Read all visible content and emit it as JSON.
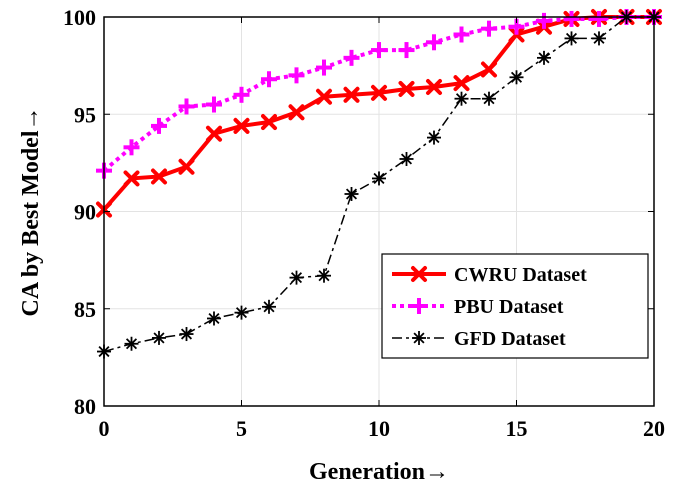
{
  "chart_data": {
    "type": "line",
    "xlabel": "Generation→",
    "ylabel": "CA by Best Model→",
    "xlim": [
      0,
      20
    ],
    "ylim": [
      80,
      100
    ],
    "xticks": [
      0,
      5,
      10,
      15,
      20
    ],
    "yticks": [
      80,
      85,
      90,
      95,
      100
    ],
    "grid": true,
    "legend_position": "bottom-right",
    "x": [
      0,
      1,
      2,
      3,
      4,
      5,
      6,
      7,
      8,
      9,
      10,
      11,
      12,
      13,
      14,
      15,
      16,
      17,
      18,
      19,
      20
    ],
    "series": [
      {
        "name": "CWRU Dataset",
        "color": "#ff0000",
        "line_style": "solid",
        "marker": "x",
        "values": [
          90.1,
          91.7,
          91.8,
          92.3,
          94.0,
          94.4,
          94.6,
          95.1,
          95.9,
          96.0,
          96.1,
          96.3,
          96.4,
          96.6,
          97.3,
          99.1,
          99.5,
          99.9,
          100.0,
          100.0,
          100.0
        ]
      },
      {
        "name": "PBU Dataset",
        "color": "#ff00ff",
        "line_style": "dotted",
        "marker": "+",
        "values": [
          92.1,
          93.3,
          94.4,
          95.4,
          95.5,
          96.0,
          96.8,
          97.0,
          97.4,
          97.9,
          98.3,
          98.3,
          98.7,
          99.1,
          99.4,
          99.5,
          99.8,
          99.9,
          99.9,
          100.0,
          100.0
        ]
      },
      {
        "name": "GFD Dataset",
        "color": "#000000",
        "line_style": "dashdot",
        "marker": "*",
        "values": [
          82.8,
          83.2,
          83.5,
          83.7,
          84.5,
          84.8,
          85.1,
          86.6,
          86.7,
          90.9,
          91.7,
          92.7,
          93.8,
          95.8,
          95.8,
          96.9,
          97.9,
          98.9,
          98.9,
          100.0,
          100.0
        ]
      }
    ]
  }
}
